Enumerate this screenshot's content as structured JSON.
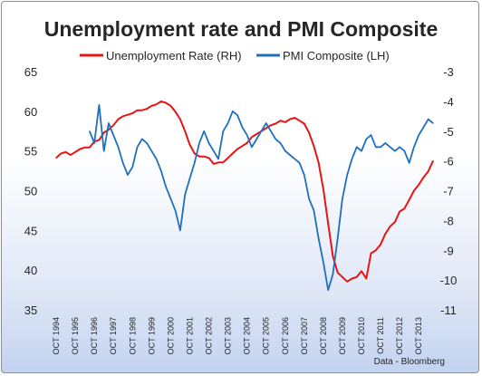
{
  "chart_data": {
    "type": "line",
    "title": "Unemployment rate and PMI Composite",
    "source": "Data - Bloomberg",
    "legend_position": "top",
    "grid": false,
    "colors": {
      "unemployment": "#e81414",
      "pmi": "#1f6fbf"
    },
    "left_axis": {
      "ylim": [
        35,
        65
      ],
      "ticks": [
        "65",
        "60",
        "55",
        "50",
        "45",
        "40",
        "35"
      ]
    },
    "right_axis": {
      "ylim": [
        -11,
        -3
      ],
      "ticks": [
        "-3",
        "-4",
        "-5",
        "-6",
        "-7",
        "-8",
        "-9",
        "-10",
        "-11"
      ]
    },
    "x_ticks": [
      "OCT 1994",
      "OCT 1995",
      "OCT 1996",
      "OCT 1997",
      "OCT 1998",
      "OCT 1999",
      "OCT 2000",
      "OCT 2001",
      "OCT 2002",
      "OCT 2003",
      "OCT 2004",
      "OCT 2005",
      "OCT 2006",
      "OCT 2007",
      "OCT 2008",
      "OCT 2009",
      "OCT 2010",
      "OCT 2011",
      "OCT 2012",
      "OCT 2013"
    ],
    "x_range": [
      1994.75,
      2014.5
    ],
    "series": [
      {
        "name": "Unemployment Rate (RH)",
        "axis": "right",
        "x": [
          1994.75,
          1995.0,
          1995.25,
          1995.5,
          1995.75,
          1996.0,
          1996.25,
          1996.5,
          1996.75,
          1997.0,
          1997.25,
          1997.5,
          1997.75,
          1998.0,
          1998.25,
          1998.5,
          1998.75,
          1999.0,
          1999.25,
          1999.5,
          1999.75,
          2000.0,
          2000.25,
          2000.5,
          2000.75,
          2001.0,
          2001.25,
          2001.5,
          2001.75,
          2002.0,
          2002.25,
          2002.5,
          2002.75,
          2003.0,
          2003.25,
          2003.5,
          2003.75,
          2004.0,
          2004.25,
          2004.5,
          2004.75,
          2005.0,
          2005.25,
          2005.5,
          2005.75,
          2006.0,
          2006.25,
          2006.5,
          2006.75,
          2007.0,
          2007.25,
          2007.5,
          2007.75,
          2008.0,
          2008.25,
          2008.5,
          2008.75,
          2009.0,
          2009.25,
          2009.5,
          2009.75,
          2010.0,
          2010.25,
          2010.5,
          2010.75,
          2011.0,
          2011.25,
          2011.5,
          2011.75,
          2012.0,
          2012.25,
          2012.5,
          2012.75,
          2013.0,
          2013.25,
          2013.5,
          2013.75,
          2014.0,
          2014.25,
          2014.5
        ],
        "values": [
          -5.9,
          -5.75,
          -5.7,
          -5.8,
          -5.7,
          -5.6,
          -5.55,
          -5.55,
          -5.35,
          -5.3,
          -5.05,
          -4.95,
          -4.8,
          -4.6,
          -4.5,
          -4.45,
          -4.4,
          -4.3,
          -4.3,
          -4.25,
          -4.15,
          -4.1,
          -4.0,
          -4.05,
          -4.15,
          -4.35,
          -4.6,
          -5.0,
          -5.45,
          -5.75,
          -5.85,
          -5.85,
          -5.9,
          -6.1,
          -6.05,
          -6.05,
          -5.9,
          -5.75,
          -5.6,
          -5.5,
          -5.4,
          -5.2,
          -5.1,
          -5.0,
          -4.9,
          -4.8,
          -4.75,
          -4.65,
          -4.7,
          -4.6,
          -4.55,
          -4.65,
          -4.75,
          -5.05,
          -5.5,
          -6.05,
          -6.95,
          -8.1,
          -9.2,
          -9.75,
          -9.9,
          -10.05,
          -9.95,
          -9.9,
          -9.7,
          -9.95,
          -9.1,
          -9.0,
          -8.8,
          -8.45,
          -8.2,
          -8.05,
          -7.7,
          -7.6,
          -7.3,
          -7.0,
          -6.8,
          -6.55,
          -6.35,
          -6.0
        ]
      },
      {
        "name": "PMI Composite (LH)",
        "axis": "left",
        "x": [
          1994.75,
          1995.0,
          1995.25,
          1995.5,
          1995.75,
          1996.0,
          1996.25,
          1996.5,
          1996.75,
          1997.0,
          1997.25,
          1997.5,
          1997.75,
          1998.0,
          1998.25,
          1998.5,
          1998.75,
          1999.0,
          1999.25,
          1999.5,
          1999.75,
          2000.0,
          2000.25,
          2000.5,
          2000.75,
          2001.0,
          2001.25,
          2001.5,
          2001.75,
          2002.0,
          2002.25,
          2002.5,
          2002.75,
          2003.0,
          2003.25,
          2003.5,
          2003.75,
          2004.0,
          2004.25,
          2004.5,
          2004.75,
          2005.0,
          2005.25,
          2005.5,
          2005.75,
          2006.0,
          2006.25,
          2006.5,
          2006.75,
          2007.0,
          2007.25,
          2007.5,
          2007.75,
          2008.0,
          2008.25,
          2008.5,
          2008.75,
          2009.0,
          2009.25,
          2009.5,
          2009.75,
          2010.0,
          2010.25,
          2010.5,
          2010.75,
          2011.0,
          2011.25,
          2011.5,
          2011.75,
          2012.0,
          2012.25,
          2012.5,
          2012.75,
          2013.0,
          2013.25,
          2013.5,
          2013.75,
          2014.0,
          2014.25,
          2014.5
        ],
        "values": [
          null,
          null,
          null,
          null,
          null,
          null,
          null,
          57.5,
          56.0,
          60.8,
          55.0,
          58.5,
          57.0,
          55.5,
          53.5,
          52.0,
          53.0,
          55.5,
          56.5,
          56.0,
          55.0,
          54.0,
          52.5,
          50.5,
          49.0,
          47.5,
          45.0,
          49.5,
          51.5,
          53.5,
          56.0,
          57.5,
          56.0,
          55.0,
          54.0,
          57.5,
          58.5,
          60.0,
          59.5,
          58.0,
          57.0,
          55.5,
          56.5,
          57.5,
          58.5,
          57.5,
          56.5,
          56.0,
          55.0,
          54.5,
          54.0,
          53.5,
          52.0,
          49.0,
          47.5,
          44.0,
          41.0,
          37.5,
          39.5,
          44.0,
          49.0,
          52.0,
          54.0,
          55.5,
          55.0,
          56.5,
          57.0,
          55.5,
          55.5,
          56.0,
          55.5,
          55.0,
          55.5,
          55.0,
          53.5,
          55.5,
          57.0,
          58.0,
          59.0,
          58.5
        ]
      }
    ]
  }
}
